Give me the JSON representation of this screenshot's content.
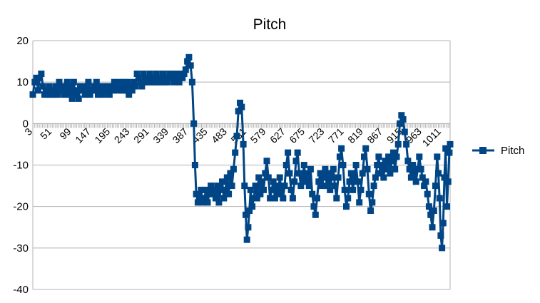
{
  "chart_data": {
    "type": "line",
    "title": "Pitch",
    "xlabel": "",
    "ylabel": "",
    "ylim": [
      -40,
      20
    ],
    "y_ticks": [
      20,
      10,
      0,
      -10,
      -20,
      -30,
      -40
    ],
    "x_range": [
      3,
      1032
    ],
    "x_tick_labels": [
      "3",
      "51",
      "99",
      "147",
      "195",
      "243",
      "291",
      "339",
      "387",
      "435",
      "483",
      "531",
      "579",
      "627",
      "675",
      "723",
      "771",
      "819",
      "867",
      "915",
      "963",
      "1011"
    ],
    "grid": true,
    "legend_position": "right",
    "series_color": "#004586",
    "marker": "square",
    "series": [
      {
        "name": "Pitch",
        "points": [
          [
            3,
            7
          ],
          [
            8,
            10
          ],
          [
            12,
            11
          ],
          [
            16,
            8
          ],
          [
            20,
            11
          ],
          [
            24,
            12
          ],
          [
            28,
            9
          ],
          [
            32,
            7
          ],
          [
            36,
            8
          ],
          [
            40,
            7
          ],
          [
            44,
            9
          ],
          [
            48,
            7
          ],
          [
            52,
            8
          ],
          [
            56,
            7
          ],
          [
            60,
            9
          ],
          [
            64,
            7
          ],
          [
            68,
            10
          ],
          [
            72,
            8
          ],
          [
            76,
            9
          ],
          [
            80,
            7
          ],
          [
            84,
            8
          ],
          [
            88,
            10
          ],
          [
            92,
            7
          ],
          [
            96,
            9
          ],
          [
            100,
            6
          ],
          [
            104,
            10
          ],
          [
            108,
            7
          ],
          [
            112,
            8
          ],
          [
            116,
            6
          ],
          [
            120,
            9
          ],
          [
            124,
            8
          ],
          [
            128,
            9
          ],
          [
            132,
            7
          ],
          [
            136,
            8
          ],
          [
            140,
            10
          ],
          [
            144,
            7
          ],
          [
            148,
            8
          ],
          [
            152,
            9
          ],
          [
            156,
            8
          ],
          [
            160,
            10
          ],
          [
            164,
            7
          ],
          [
            168,
            9
          ],
          [
            172,
            8
          ],
          [
            176,
            7
          ],
          [
            180,
            9
          ],
          [
            184,
            8
          ],
          [
            188,
            9
          ],
          [
            192,
            7
          ],
          [
            196,
            9
          ],
          [
            200,
            8
          ],
          [
            204,
            10
          ],
          [
            208,
            9
          ],
          [
            212,
            8
          ],
          [
            216,
            10
          ],
          [
            220,
            9
          ],
          [
            224,
            8
          ],
          [
            228,
            10
          ],
          [
            232,
            8
          ],
          [
            236,
            10
          ],
          [
            240,
            7
          ],
          [
            244,
            9
          ],
          [
            248,
            8
          ],
          [
            252,
            10
          ],
          [
            256,
            9
          ],
          [
            260,
            12
          ],
          [
            264,
            11
          ],
          [
            268,
            10
          ],
          [
            272,
            9
          ],
          [
            276,
            12
          ],
          [
            280,
            10
          ],
          [
            284,
            11
          ],
          [
            288,
            10
          ],
          [
            292,
            12
          ],
          [
            296,
            10
          ],
          [
            300,
            11
          ],
          [
            304,
            10
          ],
          [
            308,
            12
          ],
          [
            312,
            10
          ],
          [
            316,
            11
          ],
          [
            320,
            10
          ],
          [
            324,
            12
          ],
          [
            328,
            10
          ],
          [
            332,
            11
          ],
          [
            336,
            10
          ],
          [
            340,
            12
          ],
          [
            344,
            11
          ],
          [
            348,
            12
          ],
          [
            352,
            10
          ],
          [
            356,
            11
          ],
          [
            360,
            12
          ],
          [
            364,
            10
          ],
          [
            368,
            12
          ],
          [
            372,
            11
          ],
          [
            376,
            12
          ],
          [
            380,
            13
          ],
          [
            384,
            15
          ],
          [
            388,
            16
          ],
          [
            392,
            14
          ],
          [
            396,
            10
          ],
          [
            400,
            0
          ],
          [
            403,
            -10
          ],
          [
            406,
            -17
          ],
          [
            410,
            -19
          ],
          [
            414,
            -18
          ],
          [
            418,
            -16
          ],
          [
            422,
            -19
          ],
          [
            426,
            -18
          ],
          [
            430,
            -16
          ],
          [
            434,
            -19
          ],
          [
            438,
            -17
          ],
          [
            442,
            -15
          ],
          [
            446,
            -17
          ],
          [
            450,
            -16
          ],
          [
            454,
            -18
          ],
          [
            458,
            -15
          ],
          [
            462,
            -19
          ],
          [
            466,
            -16
          ],
          [
            470,
            -14
          ],
          [
            474,
            -18
          ],
          [
            478,
            -16
          ],
          [
            482,
            -13
          ],
          [
            486,
            -17
          ],
          [
            490,
            -12
          ],
          [
            494,
            -15
          ],
          [
            498,
            -11
          ],
          [
            502,
            -7
          ],
          [
            506,
            -3
          ],
          [
            510,
            3
          ],
          [
            514,
            5
          ],
          [
            518,
            4
          ],
          [
            522,
            -5
          ],
          [
            525,
            -15
          ],
          [
            528,
            -22
          ],
          [
            531,
            -28
          ],
          [
            534,
            -25
          ],
          [
            537,
            -21
          ],
          [
            540,
            -16
          ],
          [
            544,
            -20
          ],
          [
            548,
            -18
          ],
          [
            552,
            -15
          ],
          [
            556,
            -18
          ],
          [
            560,
            -13
          ],
          [
            564,
            -17
          ],
          [
            568,
            -14
          ],
          [
            572,
            -16
          ],
          [
            576,
            -12
          ],
          [
            580,
            -9
          ],
          [
            584,
            -13
          ],
          [
            588,
            -18
          ],
          [
            592,
            -16
          ],
          [
            596,
            -14
          ],
          [
            600,
            -18
          ],
          [
            604,
            -15
          ],
          [
            608,
            -17
          ],
          [
            612,
            -13
          ],
          [
            616,
            -16
          ],
          [
            620,
            -18
          ],
          [
            624,
            -15
          ],
          [
            628,
            -10
          ],
          [
            632,
            -7
          ],
          [
            636,
            -12
          ],
          [
            640,
            -16
          ],
          [
            644,
            -18
          ],
          [
            648,
            -14
          ],
          [
            652,
            -9
          ],
          [
            656,
            -7
          ],
          [
            660,
            -12
          ],
          [
            664,
            -15
          ],
          [
            668,
            -13
          ],
          [
            672,
            -10
          ],
          [
            676,
            -14
          ],
          [
            680,
            -12
          ],
          [
            684,
            -15
          ],
          [
            688,
            -11
          ],
          [
            692,
            -17
          ],
          [
            696,
            -20
          ],
          [
            700,
            -22
          ],
          [
            704,
            -18
          ],
          [
            708,
            -14
          ],
          [
            712,
            -12
          ],
          [
            716,
            -15
          ],
          [
            720,
            -13
          ],
          [
            724,
            -11
          ],
          [
            728,
            -15
          ],
          [
            732,
            -12
          ],
          [
            736,
            -16
          ],
          [
            740,
            -13
          ],
          [
            744,
            -11
          ],
          [
            748,
            -15
          ],
          [
            752,
            -18
          ],
          [
            756,
            -13
          ],
          [
            760,
            -8
          ],
          [
            764,
            -6
          ],
          [
            768,
            -10
          ],
          [
            772,
            -16
          ],
          [
            776,
            -20
          ],
          [
            780,
            -18
          ],
          [
            784,
            -14
          ],
          [
            788,
            -12
          ],
          [
            792,
            -16
          ],
          [
            796,
            -13
          ],
          [
            800,
            -10
          ],
          [
            804,
            -14
          ],
          [
            808,
            -19
          ],
          [
            812,
            -16
          ],
          [
            816,
            -12
          ],
          [
            820,
            -8
          ],
          [
            824,
            -6
          ],
          [
            828,
            -11
          ],
          [
            832,
            -17
          ],
          [
            836,
            -21
          ],
          [
            840,
            -19
          ],
          [
            844,
            -15
          ],
          [
            848,
            -13
          ],
          [
            852,
            -10
          ],
          [
            856,
            -8
          ],
          [
            860,
            -12
          ],
          [
            864,
            -10
          ],
          [
            868,
            -13
          ],
          [
            872,
            -9
          ],
          [
            876,
            -11
          ],
          [
            880,
            -8
          ],
          [
            884,
            -12
          ],
          [
            888,
            -9
          ],
          [
            892,
            -7
          ],
          [
            896,
            -11
          ],
          [
            900,
            -8
          ],
          [
            904,
            -5
          ],
          [
            908,
            0
          ],
          [
            912,
            2
          ],
          [
            916,
            1
          ],
          [
            920,
            -2
          ],
          [
            924,
            -5
          ],
          [
            928,
            -9
          ],
          [
            932,
            -11
          ],
          [
            936,
            -13
          ],
          [
            940,
            -10
          ],
          [
            944,
            -12
          ],
          [
            948,
            -14
          ],
          [
            952,
            -11
          ],
          [
            956,
            -8
          ],
          [
            960,
            -11
          ],
          [
            964,
            -13
          ],
          [
            968,
            -15
          ],
          [
            972,
            -14
          ],
          [
            976,
            -17
          ],
          [
            980,
            -20
          ],
          [
            984,
            -22
          ],
          [
            988,
            -25
          ],
          [
            992,
            -21
          ],
          [
            996,
            -15
          ],
          [
            1000,
            -8
          ],
          [
            1003,
            -12
          ],
          [
            1006,
            -18
          ],
          [
            1009,
            -27
          ],
          [
            1012,
            -30
          ],
          [
            1015,
            -24
          ],
          [
            1018,
            -13
          ],
          [
            1021,
            -6
          ],
          [
            1024,
            -20
          ],
          [
            1027,
            -14
          ],
          [
            1030,
            -7
          ],
          [
            1032,
            -5
          ]
        ]
      }
    ]
  }
}
